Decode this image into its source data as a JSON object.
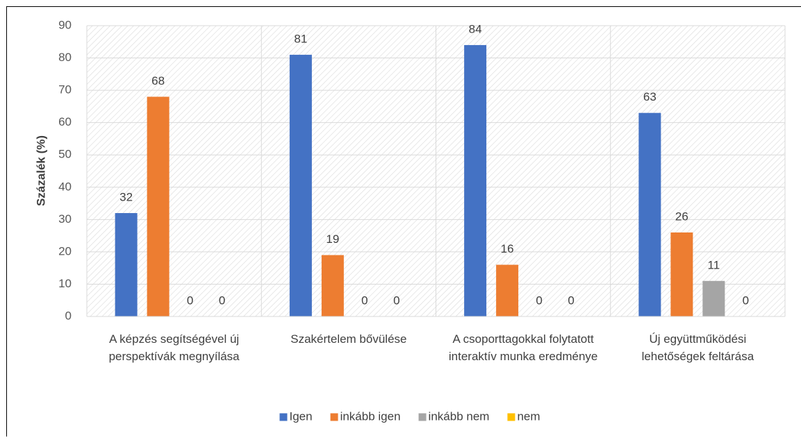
{
  "chart_data": {
    "type": "bar",
    "y_label": "Százalék (%)",
    "categories": [
      "A képzés segítségével új perspektívák megnyílása",
      "Szakértelem bővülése",
      "A csoporttagokkal folytatott interaktív munka eredménye",
      "Új együttműködési lehetőségek feltárása"
    ],
    "series": [
      {
        "name": "Igen",
        "color": "#4472c4",
        "values": [
          32,
          81,
          84,
          63
        ]
      },
      {
        "name": "inkább igen",
        "color": "#ed7d31",
        "values": [
          68,
          19,
          16,
          26
        ]
      },
      {
        "name": "inkább nem",
        "color": "#a5a5a5",
        "values": [
          0,
          0,
          0,
          11
        ]
      },
      {
        "name": "nem",
        "color": "#ffc000",
        "values": [
          0,
          0,
          0,
          0
        ]
      }
    ],
    "ylim": [
      0,
      90
    ],
    "yticks": [
      0,
      10,
      20,
      30,
      40,
      50,
      60,
      70,
      80,
      90
    ],
    "legend": "bottom"
  }
}
